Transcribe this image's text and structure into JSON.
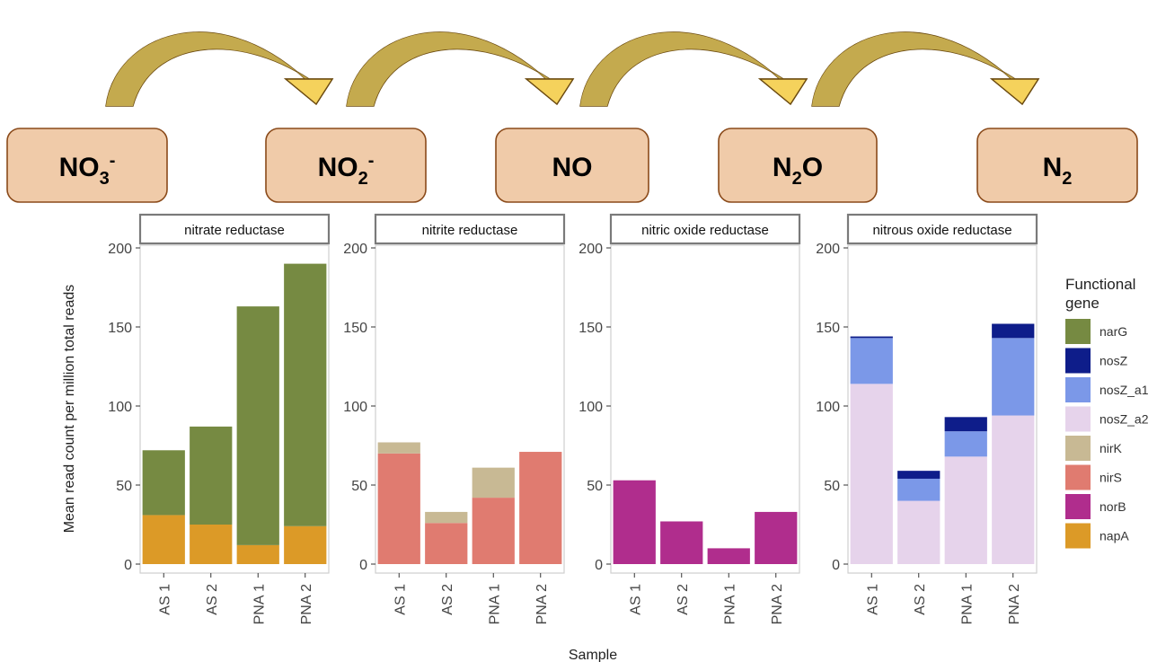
{
  "pathway": {
    "compounds": [
      {
        "base": "NO",
        "sub": "3",
        "sup": "-"
      },
      {
        "base": "NO",
        "sub": "2",
        "sup": "-"
      },
      {
        "base": "NO",
        "sub": "",
        "sup": ""
      },
      {
        "base": "N",
        "sub": "2",
        "sup": "",
        "tail": "O"
      },
      {
        "base": "N",
        "sub": "2",
        "sup": ""
      }
    ],
    "box_fill": "#f0cba9",
    "box_stroke": "#8a4a1a",
    "arrow_dark": "#c4aa4e",
    "arrow_light": "#f5d25c"
  },
  "chart_data": {
    "type": "bar",
    "stacked": true,
    "ylabel": "Mean read count per million total reads",
    "xlabel": "Sample",
    "ylim": [
      0,
      200
    ],
    "yticks": [
      0,
      50,
      100,
      150,
      200
    ],
    "categories": [
      "AS 1",
      "AS 2",
      "PNA 1",
      "PNA 2"
    ],
    "legend": {
      "title": "Functional gene",
      "placement": "right",
      "entries": [
        {
          "name": "narG",
          "color": "#768a42"
        },
        {
          "name": "nosZ",
          "color": "#0e1d8a"
        },
        {
          "name": "nosZ_a1",
          "color": "#7b98e8"
        },
        {
          "name": "nosZ_a2",
          "color": "#e6d3eb"
        },
        {
          "name": "nirK",
          "color": "#c8b994"
        },
        {
          "name": "nirS",
          "color": "#e07b70"
        },
        {
          "name": "norB",
          "color": "#b02d8d"
        },
        {
          "name": "napA",
          "color": "#dc9a27"
        }
      ]
    },
    "panels": [
      {
        "title": "nitrate reductase",
        "series": [
          {
            "name": "napA",
            "values": [
              31,
              25,
              12,
              24
            ]
          },
          {
            "name": "narG",
            "values": [
              41,
              62,
              151,
              166
            ]
          }
        ]
      },
      {
        "title": "nitrite reductase",
        "series": [
          {
            "name": "nirS",
            "values": [
              70,
              26,
              42,
              71
            ]
          },
          {
            "name": "nirK",
            "values": [
              7,
              7,
              19,
              0
            ]
          }
        ]
      },
      {
        "title": "nitric oxide reductase",
        "series": [
          {
            "name": "norB",
            "values": [
              53,
              27,
              10,
              33
            ]
          }
        ]
      },
      {
        "title": "nitrous oxide reductase",
        "series": [
          {
            "name": "nosZ_a2",
            "values": [
              114,
              40,
              68,
              94
            ]
          },
          {
            "name": "nosZ_a1",
            "values": [
              29,
              14,
              16,
              49
            ]
          },
          {
            "name": "nosZ",
            "values": [
              1,
              5,
              9,
              9
            ]
          }
        ]
      }
    ]
  }
}
